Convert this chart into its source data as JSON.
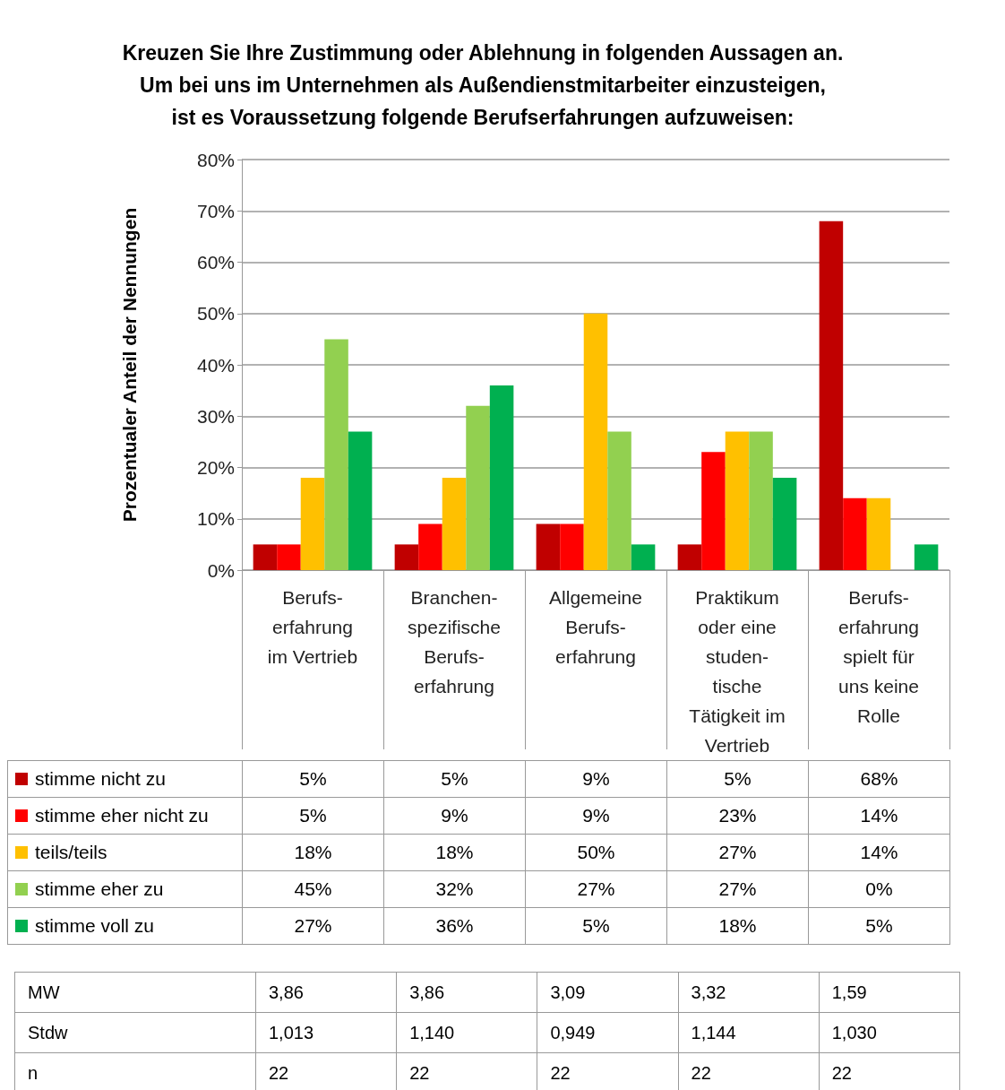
{
  "chart_data": [
    {
      "type": "bar",
      "title": "Kreuzen Sie Ihre Zustimmung oder Ablehnung in folgenden Aussagen an.\nUm bei uns im Unternehmen als Außendienstmitarbeiter einzusteigen,\nist es Voraussetzung folgende Berufserfahrungen aufzuweisen:",
      "ylabel": "Prozentualer Anteil der Nennungen",
      "categories": [
        "Berufs-\nerfahrung\nim Vertrieb",
        "Branchen-\nspezifische\nBerufs-\nerfahrung",
        "Allgemeine\nBerufs-\nerfahrung",
        "Praktikum\noder eine\nstuden-\ntische\nTätigkeit im\nVertrieb",
        "Berufs-\nerfahrung\nspielt für\nuns keine\nRolle"
      ],
      "series": [
        {
          "name": "stimme nicht zu",
          "color": "#c00000",
          "values": [
            5,
            5,
            9,
            5,
            68
          ],
          "value_labels": [
            "5%",
            "5%",
            "9%",
            "5%",
            "68%"
          ]
        },
        {
          "name": "stimme eher nicht zu",
          "color": "#ff0000",
          "values": [
            5,
            9,
            9,
            23,
            14
          ],
          "value_labels": [
            "5%",
            "9%",
            "9%",
            "23%",
            "14%"
          ]
        },
        {
          "name": "teils/teils",
          "color": "#ffc000",
          "values": [
            18,
            18,
            50,
            27,
            14
          ],
          "value_labels": [
            "18%",
            "18%",
            "50%",
            "27%",
            "14%"
          ]
        },
        {
          "name": "stimme eher zu",
          "color": "#92d050",
          "values": [
            45,
            32,
            27,
            27,
            0
          ],
          "value_labels": [
            "45%",
            "32%",
            "27%",
            "27%",
            "0%"
          ]
        },
        {
          "name": "stimme voll zu",
          "color": "#00b050",
          "values": [
            27,
            36,
            5,
            18,
            5
          ],
          "value_labels": [
            "27%",
            "36%",
            "5%",
            "18%",
            "5%"
          ]
        }
      ],
      "ylim": [
        0,
        80
      ],
      "yticks": [
        {
          "value": 0,
          "label": "0%"
        },
        {
          "value": 10,
          "label": "10%"
        },
        {
          "value": 20,
          "label": "20%"
        },
        {
          "value": 30,
          "label": "30%"
        },
        {
          "value": 40,
          "label": "40%"
        },
        {
          "value": 50,
          "label": "50%"
        },
        {
          "value": 60,
          "label": "60%"
        },
        {
          "value": 70,
          "label": "70%"
        },
        {
          "value": 80,
          "label": "80%"
        }
      ],
      "grid": "y",
      "legend": "bottom left"
    },
    {
      "type": "other",
      "y_categories": [
        "MW",
        "Stdw",
        "n"
      ],
      "cell_labels": [
        [
          "3,86",
          "3,86",
          "3,09",
          "3,32",
          "1,59"
        ],
        [
          "1,013",
          "1,140",
          "0,949",
          "1,144",
          "1,030"
        ],
        [
          "22",
          "22",
          "22",
          "22",
          "22"
        ]
      ]
    }
  ]
}
